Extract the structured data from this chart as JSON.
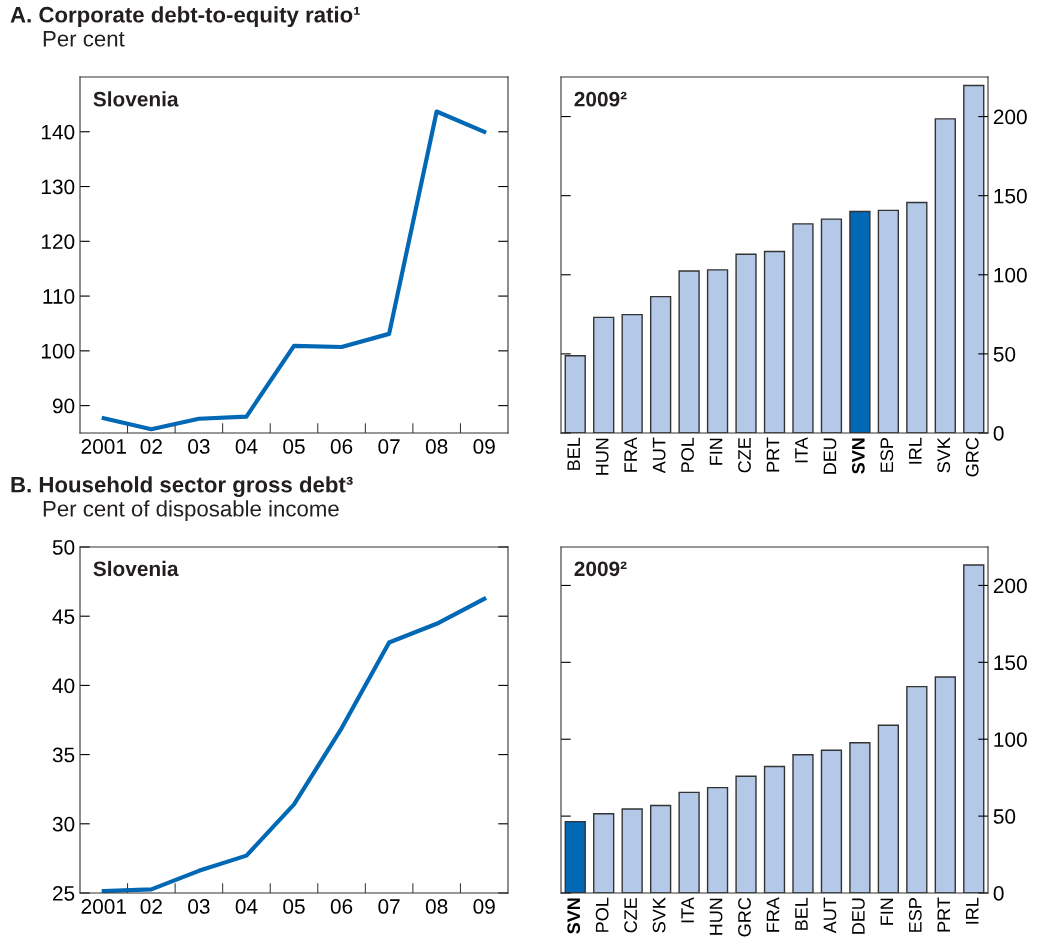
{
  "chart_data": [
    {
      "type": "line",
      "title": "A. Corporate debt-to-equity ratio¹",
      "subtitle": "Per cent",
      "annotations": [
        "Slovenia"
      ],
      "categories": [
        "2001",
        "02",
        "03",
        "04",
        "05",
        "06",
        "07",
        "08",
        "09"
      ],
      "values": [
        87.7,
        85.7,
        87.6,
        88.0,
        100.9,
        100.7,
        103.1,
        143.7,
        140.0
      ],
      "color": "#0068b4",
      "ylim": [
        85,
        150
      ],
      "yticks": [
        90,
        100,
        110,
        120,
        130,
        140
      ],
      "grid": false,
      "legend": false,
      "tick_labels": "y"
    },
    {
      "type": "bar",
      "annotations": [
        "2009²"
      ],
      "categories": [
        "BEL",
        "HUN",
        "FRA",
        "AUT",
        "POL",
        "FIN",
        "CZE",
        "PRT",
        "ITA",
        "DEU",
        "SVN",
        "ESP",
        "IRL",
        "SVK",
        "GRC"
      ],
      "values": [
        48.8,
        73.1,
        74.8,
        86.2,
        102.4,
        103.1,
        113.0,
        114.7,
        132.2,
        135.2,
        140.0,
        140.7,
        145.7,
        198.5,
        219.6
      ],
      "color": "#b4c8e8",
      "colors": [
        "#b4c8e8",
        "#b4c8e8",
        "#b4c8e8",
        "#b4c8e8",
        "#b4c8e8",
        "#b4c8e8",
        "#b4c8e8",
        "#b4c8e8",
        "#b4c8e8",
        "#b4c8e8",
        "#0068b4",
        "#b4c8e8",
        "#b4c8e8",
        "#b4c8e8",
        "#b4c8e8"
      ],
      "ylim": [
        0,
        225
      ],
      "yticks": [
        0,
        50,
        100,
        150,
        200
      ],
      "grid": false,
      "legend": false
    },
    {
      "type": "line",
      "title": "B. Household sector gross debt³",
      "subtitle": "Per cent of disposable income",
      "annotations": [
        "Slovenia"
      ],
      "categories": [
        "2001",
        "02",
        "03",
        "04",
        "05",
        "06",
        "07",
        "08",
        "09"
      ],
      "values": [
        25.14,
        25.26,
        26.6,
        27.7,
        31.4,
        36.9,
        43.1,
        44.45,
        46.25
      ],
      "color": "#0068b4",
      "ylim": [
        25,
        50
      ],
      "yticks": [
        25,
        30,
        35,
        40,
        45,
        50
      ],
      "grid": false,
      "legend": false,
      "tick_labels": "y"
    },
    {
      "type": "bar",
      "annotations": [
        "2009²"
      ],
      "categories": [
        "SVN",
        "POL",
        "CZE",
        "SVK",
        "ITA",
        "HUN",
        "GRC",
        "FRA",
        "BEL",
        "AUT",
        "DEU",
        "FIN",
        "ESP",
        "PRT",
        "IRL"
      ],
      "values": [
        46.4,
        51.5,
        54.6,
        56.9,
        65.4,
        68.5,
        75.9,
        82.3,
        89.9,
        92.8,
        97.7,
        109.1,
        134.2,
        140.5,
        213.3
      ],
      "color": "#b4c8e8",
      "colors": [
        "#0068b4",
        "#b4c8e8",
        "#b4c8e8",
        "#b4c8e8",
        "#b4c8e8",
        "#b4c8e8",
        "#b4c8e8",
        "#b4c8e8",
        "#b4c8e8",
        "#b4c8e8",
        "#b4c8e8",
        "#b4c8e8",
        "#b4c8e8",
        "#b4c8e8",
        "#b4c8e8"
      ],
      "ylim": [
        0,
        225
      ],
      "yticks": [
        0,
        50,
        100,
        150,
        200
      ],
      "grid": false,
      "legend": false
    }
  ]
}
